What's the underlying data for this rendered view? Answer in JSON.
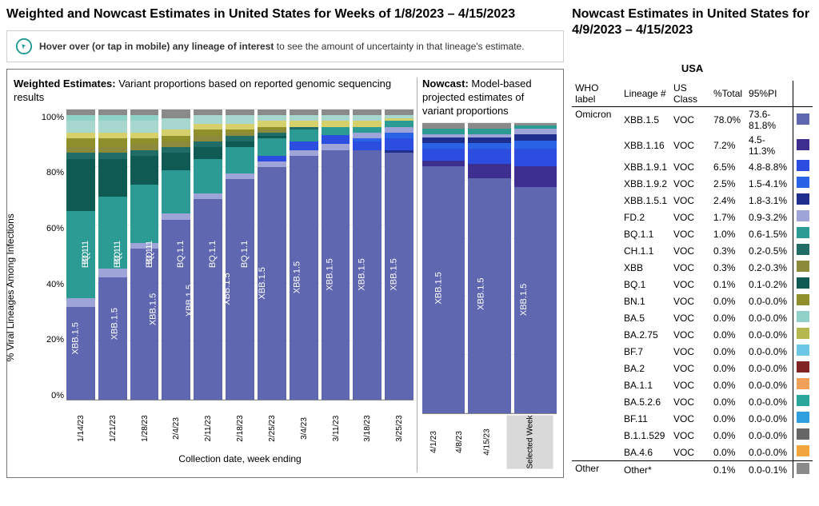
{
  "left_title": "Weighted and Nowcast Estimates in United States for Weeks of 1/8/2023 – 4/15/2023",
  "right_title": "Nowcast Estimates in United States for 4/9/2023 – 4/15/2023",
  "hint_bold": "Hover over (or tap in mobile) any lineage of interest",
  "hint_rest": " to see the amount of uncertainty in that lineage's estimate.",
  "weighted_title_bold": "Weighted Estimates:",
  "weighted_title_rest": " Variant proportions based on reported genomic sequencing results",
  "nowcast_title_bold": "Nowcast:",
  "nowcast_title_rest": " Model-based projected estimates of variant proportions",
  "y_label": "% Viral Lineages Among Infections",
  "x_label": "Collection date, week ending",
  "y_ticks": [
    "100%",
    "80%",
    "60%",
    "40%",
    "20%",
    "0%"
  ],
  "selected_week_label": "Selected Week",
  "table_region_label": "USA",
  "table_headers": [
    "WHO label",
    "Lineage #",
    "US Class",
    "%Total",
    "95%PI",
    ""
  ],
  "colors": {
    "XBB.1.5": "#5f67b0",
    "XBB.1.16": "#3c2f8f",
    "XBB.1.9.1": "#2b4de0",
    "XBB.1.9.2": "#2a63e6",
    "XBB.1.5.1": "#1e2f90",
    "FD.2": "#9fa4d8",
    "BQ.1.1": "#2b9b93",
    "CH.1.1": "#1f6d66",
    "XBB": "#8b8b3b",
    "BQ.1": "#0f5a53",
    "BN.1": "#8f8f2b",
    "BA.5": "#8fd0c7",
    "BA.2.75": "#b5b84f",
    "BF.7": "#6cc6e6",
    "BA.2": "#802424",
    "BA.1.1": "#f0a05a",
    "BA.5.2.6": "#2aa69a",
    "BF.11": "#2f9fe0",
    "B.1.1.529": "#666666",
    "BA.4.6": "#f0a63c",
    "Other": "#8a8a8a",
    "misc1": "#d6d06a",
    "misc2": "#a7d7cf"
  },
  "weighted_bars": [
    {
      "date": "1/14/23",
      "stack": [
        [
          "XBB.1.5",
          32
        ],
        [
          "FD.2",
          3
        ],
        [
          "BQ.1.1",
          30
        ],
        [
          "BQ.1",
          18
        ],
        [
          "CH.1.1",
          2
        ],
        [
          "XBB",
          2
        ],
        [
          "BN.1",
          3
        ],
        [
          "misc1",
          2
        ],
        [
          "misc2",
          4
        ],
        [
          "BA.5",
          2
        ],
        [
          "Other",
          2
        ]
      ],
      "labels": [
        [
          "XBB.1.5",
          16
        ],
        [
          "BQ.1.1",
          50
        ],
        [
          "BQ.1",
          74
        ]
      ]
    },
    {
      "date": "1/21/23",
      "stack": [
        [
          "XBB.1.5",
          42
        ],
        [
          "FD.2",
          3
        ],
        [
          "BQ.1.1",
          25
        ],
        [
          "BQ.1",
          13
        ],
        [
          "CH.1.1",
          2
        ],
        [
          "XBB",
          2
        ],
        [
          "BN.1",
          3
        ],
        [
          "misc1",
          2
        ],
        [
          "misc2",
          4
        ],
        [
          "BA.5",
          2
        ],
        [
          "Other",
          2
        ]
      ],
      "labels": [
        [
          "XBB.1.5",
          21
        ],
        [
          "BQ.1.1",
          57
        ],
        [
          "BQ.1",
          76
        ]
      ]
    },
    {
      "date": "1/28/23",
      "stack": [
        [
          "XBB.1.5",
          52
        ],
        [
          "FD.2",
          2
        ],
        [
          "BQ.1.1",
          20
        ],
        [
          "BQ.1",
          10
        ],
        [
          "CH.1.1",
          2
        ],
        [
          "XBB",
          2
        ],
        [
          "BN.1",
          2
        ],
        [
          "misc1",
          2
        ],
        [
          "misc2",
          4
        ],
        [
          "BA.5",
          2
        ],
        [
          "Other",
          2
        ]
      ],
      "labels": [
        [
          "XBB.1.5",
          26
        ],
        [
          "BQ.1.1",
          64
        ],
        [
          "BQ.1",
          79
        ]
      ]
    },
    {
      "date": "2/4/23",
      "stack": [
        [
          "XBB.1.5",
          62
        ],
        [
          "FD.2",
          2
        ],
        [
          "BQ.1.1",
          15
        ],
        [
          "BQ.1",
          6
        ],
        [
          "CH.1.1",
          2
        ],
        [
          "XBB",
          2
        ],
        [
          "BN.1",
          2
        ],
        [
          "misc1",
          2
        ],
        [
          "misc2",
          4
        ],
        [
          "Other",
          3
        ]
      ],
      "labels": [
        [
          "XBB.1.5",
          31
        ],
        [
          "BQ.1.1",
          71
        ]
      ]
    },
    {
      "date": "2/11/23",
      "stack": [
        [
          "XBB.1.5",
          69
        ],
        [
          "FD.2",
          2
        ],
        [
          "BQ.1.1",
          12
        ],
        [
          "BQ.1",
          4
        ],
        [
          "CH.1.1",
          2
        ],
        [
          "XBB",
          2
        ],
        [
          "BN.1",
          2
        ],
        [
          "misc1",
          2
        ],
        [
          "misc2",
          3
        ],
        [
          "Other",
          2
        ]
      ],
      "labels": [
        [
          "XBB.1.5",
          34
        ],
        [
          "BQ.1.1",
          77
        ]
      ]
    },
    {
      "date": "2/18/23",
      "stack": [
        [
          "XBB.1.5",
          76
        ],
        [
          "FD.2",
          2
        ],
        [
          "BQ.1.1",
          9
        ],
        [
          "BQ.1",
          2
        ],
        [
          "CH.1.1",
          2
        ],
        [
          "XBB",
          1
        ],
        [
          "BN.1",
          1
        ],
        [
          "misc1",
          2
        ],
        [
          "misc2",
          3
        ],
        [
          "Other",
          2
        ]
      ],
      "labels": [
        [
          "XBB.1.5",
          38
        ],
        [
          "BQ.1.1",
          82
        ]
      ]
    },
    {
      "date": "2/25/23",
      "stack": [
        [
          "XBB.1.5",
          80
        ],
        [
          "FD.2",
          2
        ],
        [
          "XBB.1.9.1",
          2
        ],
        [
          "BQ.1.1",
          6
        ],
        [
          "BQ.1",
          1
        ],
        [
          "CH.1.1",
          1
        ],
        [
          "XBB",
          1
        ],
        [
          "BN.1",
          1
        ],
        [
          "misc1",
          2
        ],
        [
          "misc2",
          2
        ],
        [
          "Other",
          2
        ]
      ],
      "labels": [
        [
          "XBB.1.5",
          40
        ]
      ]
    },
    {
      "date": "3/4/23",
      "stack": [
        [
          "XBB.1.5",
          84
        ],
        [
          "FD.2",
          2
        ],
        [
          "XBB.1.9.1",
          3
        ],
        [
          "BQ.1.1",
          4
        ],
        [
          "CH.1.1",
          1
        ],
        [
          "misc1",
          2
        ],
        [
          "misc2",
          2
        ],
        [
          "Other",
          2
        ]
      ],
      "labels": [
        [
          "XBB.1.5",
          42
        ]
      ]
    },
    {
      "date": "3/11/23",
      "stack": [
        [
          "XBB.1.5",
          86
        ],
        [
          "FD.2",
          2
        ],
        [
          "XBB.1.9.1",
          3
        ],
        [
          "BQ.1.1",
          3
        ],
        [
          "misc1",
          2
        ],
        [
          "misc2",
          2
        ],
        [
          "Other",
          2
        ]
      ],
      "labels": [
        [
          "XBB.1.5",
          43
        ]
      ]
    },
    {
      "date": "3/18/23",
      "stack": [
        [
          "XBB.1.5",
          86
        ],
        [
          "XBB.1.9.1",
          3
        ],
        [
          "XBB.1.9.2",
          1
        ],
        [
          "FD.2",
          2
        ],
        [
          "BQ.1.1",
          2
        ],
        [
          "misc1",
          2
        ],
        [
          "misc2",
          2
        ],
        [
          "Other",
          2
        ]
      ],
      "labels": [
        [
          "XBB.1.5",
          43
        ]
      ]
    },
    {
      "date": "3/25/23",
      "stack": [
        [
          "XBB.1.5",
          85
        ],
        [
          "XBB.1.5.1",
          1
        ],
        [
          "XBB.1.9.1",
          4
        ],
        [
          "XBB.1.9.2",
          2
        ],
        [
          "FD.2",
          2
        ],
        [
          "BQ.1.1",
          2
        ],
        [
          "misc1",
          1
        ],
        [
          "misc2",
          1
        ],
        [
          "Other",
          2
        ]
      ],
      "labels": [
        [
          "XBB.1.5",
          43
        ]
      ]
    }
  ],
  "nowcast_bars": [
    {
      "date": "4/1/23",
      "stack": [
        [
          "XBB.1.5",
          85
        ],
        [
          "XBB.1.16",
          2
        ],
        [
          "XBB.1.9.1",
          4
        ],
        [
          "XBB.1.9.2",
          2
        ],
        [
          "XBB.1.5.1",
          2
        ],
        [
          "FD.2",
          1
        ],
        [
          "BQ.1.1",
          2
        ],
        [
          "Other",
          2
        ]
      ],
      "labels": [
        [
          "XBB.1.5",
          43
        ]
      ]
    },
    {
      "date": "4/8/23",
      "stack": [
        [
          "XBB.1.5",
          81
        ],
        [
          "XBB.1.16",
          5
        ],
        [
          "XBB.1.9.1",
          5
        ],
        [
          "XBB.1.9.2",
          2
        ],
        [
          "XBB.1.5.1",
          2
        ],
        [
          "FD.2",
          1
        ],
        [
          "BQ.1.1",
          2
        ],
        [
          "Other",
          2
        ]
      ],
      "labels": [
        [
          "XBB.1.5",
          41
        ]
      ]
    },
    {
      "date": "4/15/23",
      "stack": [
        [
          "XBB.1.5",
          78
        ],
        [
          "XBB.1.16",
          7
        ],
        [
          "XBB.1.9.1",
          6
        ],
        [
          "XBB.1.9.2",
          3
        ],
        [
          "XBB.1.5.1",
          2
        ],
        [
          "FD.2",
          2
        ],
        [
          "BQ.1.1",
          1
        ],
        [
          "Other",
          1
        ]
      ],
      "labels": [
        [
          "XBB.1.5",
          39
        ]
      ],
      "selected": true
    }
  ],
  "table_rows": [
    {
      "who": "Omicron",
      "lineage": "XBB.1.5",
      "class": "VOC",
      "pct": "78.0%",
      "pi": "73.6-81.8%",
      "color": "XBB.1.5"
    },
    {
      "who": "",
      "lineage": "XBB.1.16",
      "class": "VOC",
      "pct": "7.2%",
      "pi": "4.5-11.3%",
      "color": "XBB.1.16"
    },
    {
      "who": "",
      "lineage": "XBB.1.9.1",
      "class": "VOC",
      "pct": "6.5%",
      "pi": "4.8-8.8%",
      "color": "XBB.1.9.1"
    },
    {
      "who": "",
      "lineage": "XBB.1.9.2",
      "class": "VOC",
      "pct": "2.5%",
      "pi": "1.5-4.1%",
      "color": "XBB.1.9.2"
    },
    {
      "who": "",
      "lineage": "XBB.1.5.1",
      "class": "VOC",
      "pct": "2.4%",
      "pi": "1.8-3.1%",
      "color": "XBB.1.5.1"
    },
    {
      "who": "",
      "lineage": "FD.2",
      "class": "VOC",
      "pct": "1.7%",
      "pi": "0.9-3.2%",
      "color": "FD.2"
    },
    {
      "who": "",
      "lineage": "BQ.1.1",
      "class": "VOC",
      "pct": "1.0%",
      "pi": "0.6-1.5%",
      "color": "BQ.1.1"
    },
    {
      "who": "",
      "lineage": "CH.1.1",
      "class": "VOC",
      "pct": "0.3%",
      "pi": "0.2-0.5%",
      "color": "CH.1.1"
    },
    {
      "who": "",
      "lineage": "XBB",
      "class": "VOC",
      "pct": "0.3%",
      "pi": "0.2-0.3%",
      "color": "XBB"
    },
    {
      "who": "",
      "lineage": "BQ.1",
      "class": "VOC",
      "pct": "0.1%",
      "pi": "0.1-0.2%",
      "color": "BQ.1"
    },
    {
      "who": "",
      "lineage": "BN.1",
      "class": "VOC",
      "pct": "0.0%",
      "pi": "0.0-0.0%",
      "color": "BN.1"
    },
    {
      "who": "",
      "lineage": "BA.5",
      "class": "VOC",
      "pct": "0.0%",
      "pi": "0.0-0.0%",
      "color": "BA.5"
    },
    {
      "who": "",
      "lineage": "BA.2.75",
      "class": "VOC",
      "pct": "0.0%",
      "pi": "0.0-0.0%",
      "color": "BA.2.75"
    },
    {
      "who": "",
      "lineage": "BF.7",
      "class": "VOC",
      "pct": "0.0%",
      "pi": "0.0-0.0%",
      "color": "BF.7"
    },
    {
      "who": "",
      "lineage": "BA.2",
      "class": "VOC",
      "pct": "0.0%",
      "pi": "0.0-0.0%",
      "color": "BA.2"
    },
    {
      "who": "",
      "lineage": "BA.1.1",
      "class": "VOC",
      "pct": "0.0%",
      "pi": "0.0-0.0%",
      "color": "BA.1.1"
    },
    {
      "who": "",
      "lineage": "BA.5.2.6",
      "class": "VOC",
      "pct": "0.0%",
      "pi": "0.0-0.0%",
      "color": "BA.5.2.6"
    },
    {
      "who": "",
      "lineage": "BF.11",
      "class": "VOC",
      "pct": "0.0%",
      "pi": "0.0-0.0%",
      "color": "BF.11"
    },
    {
      "who": "",
      "lineage": "B.1.1.529",
      "class": "VOC",
      "pct": "0.0%",
      "pi": "0.0-0.0%",
      "color": "B.1.1.529"
    },
    {
      "who": "",
      "lineage": "BA.4.6",
      "class": "VOC",
      "pct": "0.0%",
      "pi": "0.0-0.0%",
      "color": "BA.4.6"
    },
    {
      "who": "Other",
      "lineage": "Other*",
      "class": "",
      "pct": "0.1%",
      "pi": "0.0-0.1%",
      "color": "Other",
      "other": true
    }
  ]
}
